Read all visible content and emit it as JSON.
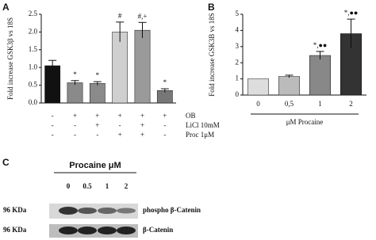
{
  "chart_data": [
    {
      "type": "bar",
      "panel": "A",
      "ylabel": "Fold increase GSK3β vs 18S",
      "categories": [
        null,
        null,
        null,
        null,
        null,
        null
      ],
      "values": [
        1.05,
        0.57,
        0.55,
        2.0,
        2.05,
        0.35
      ],
      "errors": [
        0.15,
        0.06,
        0.05,
        0.28,
        0.22,
        0.05
      ],
      "colors": [
        "#111111",
        "#8a8a8a",
        "#8a8a8a",
        "#cfcfcf",
        "#9a9a9a",
        "#777777"
      ],
      "annotations": [
        null,
        "*",
        "*",
        "#",
        "#,+",
        "*"
      ],
      "ylim": [
        0,
        2.5
      ],
      "yticks": [
        {
          "value": 0,
          "label": "0.0"
        },
        0.5,
        {
          "value": 1,
          "label": "1.0"
        },
        1.5,
        {
          "value": 2,
          "label": "2.0"
        },
        2.5
      ],
      "conditions": [
        {
          "name": "OB",
          "values": [
            "-",
            "+",
            "+",
            "+",
            "+",
            "+"
          ]
        },
        {
          "name": "LiCl 10mM",
          "values": [
            "-",
            "-",
            "+",
            "-",
            "+",
            "-"
          ]
        },
        {
          "name": "Proc 1μM",
          "values": [
            "-",
            "-",
            "-",
            "+",
            "+",
            "-"
          ]
        }
      ]
    },
    {
      "type": "bar",
      "panel": "B",
      "ylabel": "Fold increase GSK3B vs 18S",
      "xlabel": "μM Procaine",
      "categories": [
        "0",
        "0,5",
        "1",
        "2"
      ],
      "values": [
        1.0,
        1.15,
        2.45,
        3.8
      ],
      "errors": [
        0,
        0.08,
        0.25,
        0.9
      ],
      "colors": [
        "#dddddd",
        "#bbbbbb",
        "#888888",
        "#333333"
      ],
      "annotations": [
        null,
        null,
        "*,●●",
        "*,●●"
      ],
      "ylim": [
        0,
        5
      ],
      "yticks": [
        0,
        1,
        2,
        3,
        4,
        5
      ]
    }
  ],
  "panel_c": {
    "panel": "C",
    "title": "Procaine μM",
    "lanes": [
      "0",
      "0.5",
      "1",
      "2"
    ],
    "rows": [
      {
        "mw": "96 KDa",
        "label": "phospho β-Catenin"
      },
      {
        "mw": "96 KDa",
        "label": "β-Catenin"
      }
    ]
  }
}
